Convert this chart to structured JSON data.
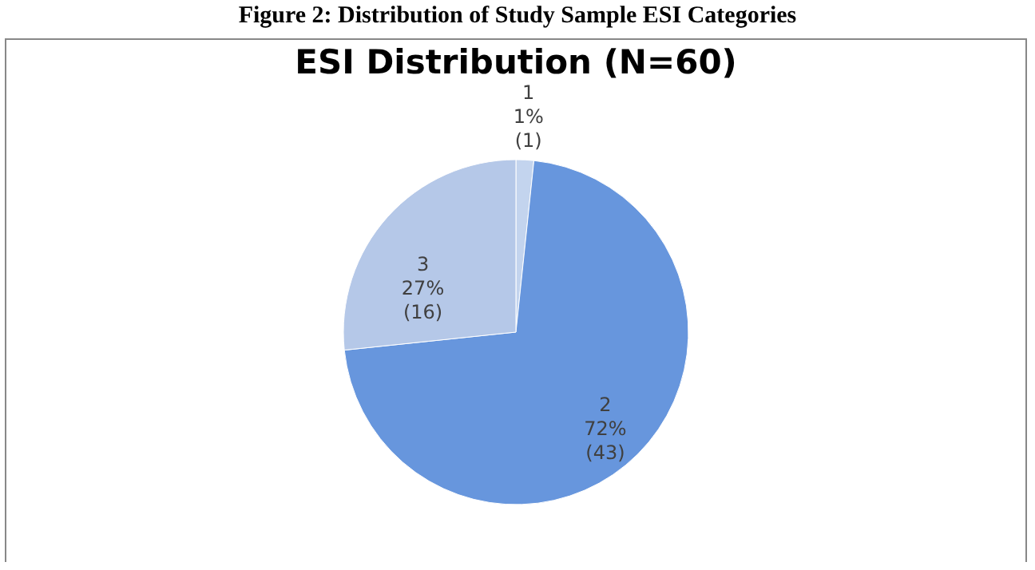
{
  "chart_data": {
    "type": "pie",
    "title": "Figure 2: Distribution of Study Sample ESI Categories",
    "subtitle": "ESI Distribution (N=60)",
    "categories": [
      "1",
      "2",
      "3"
    ],
    "values": [
      1,
      43,
      16
    ],
    "value_labels": [
      "1%\n(1)",
      "72%\n(43)",
      "27%\n(16)"
    ],
    "colors": [
      "#c3d4ee",
      "#6796dd",
      "#b5c8e8"
    ]
  }
}
